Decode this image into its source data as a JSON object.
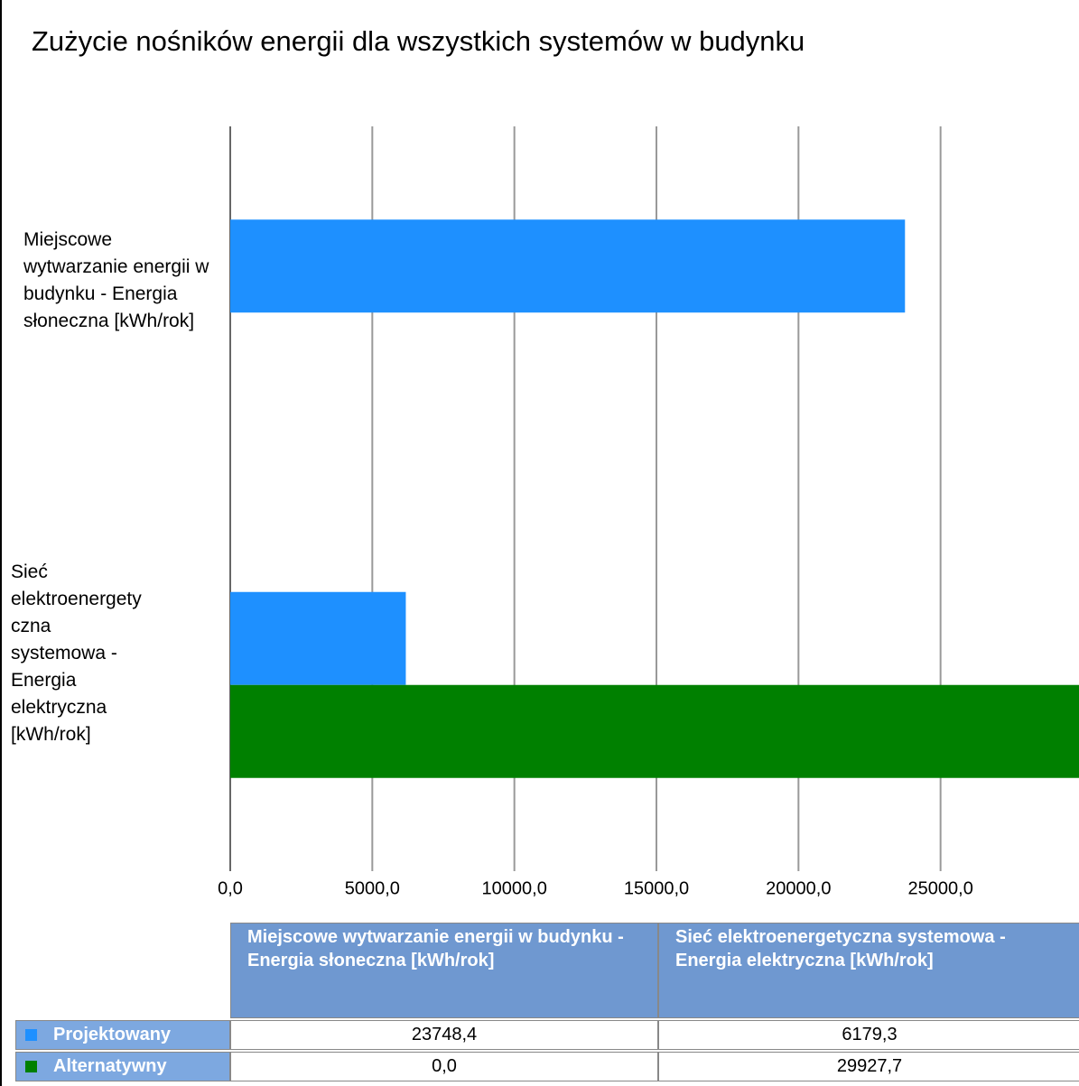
{
  "chart_data": {
    "type": "bar",
    "orientation": "horizontal",
    "title": "Zużycie nośników energii dla wszystkich systemów w budynku",
    "categories": [
      "Miejscowe wytwarzanie energii w budynku - Energia słoneczna [kWh/rok]",
      "Sieć elektroenergetyczna systemowa - Energia elektryczna [kWh/rok]"
    ],
    "series": [
      {
        "name": "Projektowany",
        "color": "#1e90ff",
        "values": [
          23748.4,
          6179.3
        ],
        "value_labels": [
          "23748,4",
          "6179,3"
        ]
      },
      {
        "name": "Alternatywny",
        "color": "#008000",
        "values": [
          0,
          29927.7
        ],
        "value_labels": [
          "0,0",
          "29927,7"
        ]
      }
    ],
    "xlim": [
      0,
      30000
    ],
    "xticks": [
      {
        "value": 0,
        "label": "0,0"
      },
      {
        "value": 5000,
        "label": "5000,0"
      },
      {
        "value": 10000,
        "label": "10000,0"
      },
      {
        "value": 15000,
        "label": "15000,0"
      },
      {
        "value": 20000,
        "label": "20000,0"
      },
      {
        "value": 25000,
        "label": "25000,0"
      }
    ],
    "grid": true
  }
}
